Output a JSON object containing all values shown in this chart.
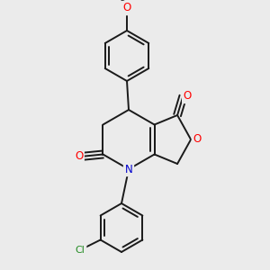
{
  "bg_color": "#ebebeb",
  "bond_color": "#1a1a1a",
  "bond_width": 1.4,
  "atom_colors": {
    "O": "#ff0000",
    "N": "#0000cd",
    "Cl": "#228B22",
    "C": "#1a1a1a"
  },
  "font_size": 8.5,
  "figsize": [
    3.0,
    3.0
  ],
  "dpi": 100
}
